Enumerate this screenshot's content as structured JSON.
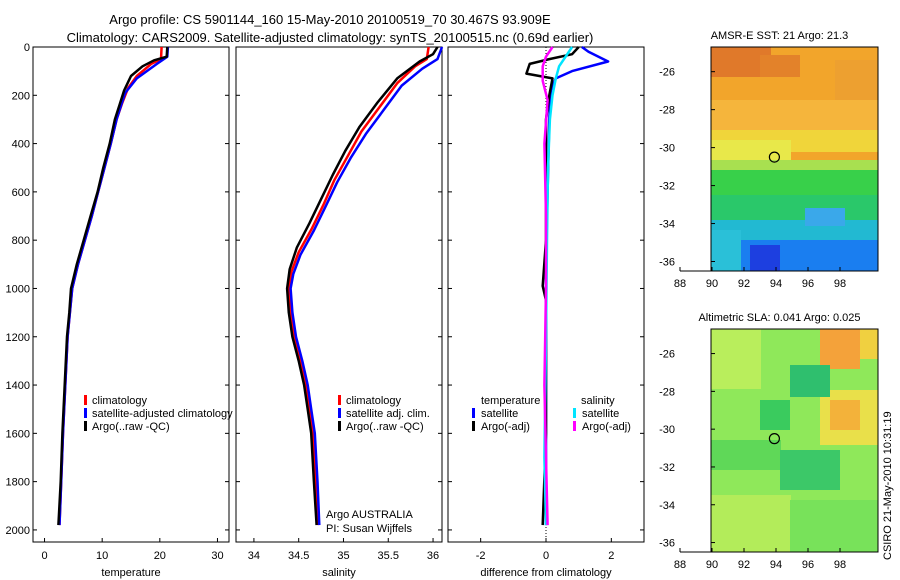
{
  "header": {
    "title_line1": "Argo profile: CS 5901144_160 15-May-2010 20100519_70 30.467S 93.909E",
    "title_line2": "Climatology: CARS2009. Satellite-adjusted climatology: synTS_20100515.nc (0.69d earlier)"
  },
  "credit": "CSIRO 21-May-2010 10:31:19",
  "colors": {
    "climatology": "#ff0000",
    "satellite": "#0000ff",
    "argo": "#000000",
    "cyan": "#00e5ff",
    "magenta": "#ff00ff"
  },
  "chart_data": [
    {
      "type": "line",
      "xlabel": "temperature",
      "xlim": [
        -2,
        32
      ],
      "ylim": [
        2050,
        0
      ],
      "xticks": [
        "0",
        "10",
        "20",
        "30"
      ],
      "yticks": [
        "0",
        "200",
        "400",
        "600",
        "800",
        "1000",
        "1200",
        "1400",
        "1600",
        "1800",
        "2000"
      ],
      "legend": [
        "climatology",
        "satellite-adjusted climatology",
        "Argo(..raw -QC)"
      ],
      "series": [
        {
          "name": "climatology",
          "color": "#ff0000",
          "points": [
            [
              20.3,
              0
            ],
            [
              20.2,
              50
            ],
            [
              18.5,
              70
            ],
            [
              16.0,
              120
            ],
            [
              14.5,
              170
            ],
            [
              13.5,
              230
            ],
            [
              12.5,
              300
            ],
            [
              11.5,
              400
            ],
            [
              10.4,
              500
            ],
            [
              9.3,
              600
            ],
            [
              8.2,
              700
            ],
            [
              7.0,
              800
            ],
            [
              5.8,
              900
            ],
            [
              4.8,
              1000
            ],
            [
              4.4,
              1100
            ],
            [
              4.0,
              1200
            ],
            [
              3.6,
              1400
            ],
            [
              3.2,
              1600
            ],
            [
              2.9,
              1800
            ],
            [
              2.6,
              1980
            ]
          ]
        },
        {
          "name": "satellite-adjusted climatology",
          "color": "#0000ff",
          "points": [
            [
              21.4,
              0
            ],
            [
              21.3,
              40
            ],
            [
              19.5,
              70
            ],
            [
              16.0,
              130
            ],
            [
              14.0,
              190
            ],
            [
              13.3,
              240
            ],
            [
              12.5,
              300
            ],
            [
              11.5,
              400
            ],
            [
              10.4,
              500
            ],
            [
              9.3,
              600
            ],
            [
              8.2,
              700
            ],
            [
              7.0,
              800
            ],
            [
              5.8,
              900
            ],
            [
              4.8,
              1000
            ],
            [
              4.4,
              1100
            ],
            [
              4.0,
              1200
            ],
            [
              3.6,
              1400
            ],
            [
              3.2,
              1600
            ],
            [
              2.9,
              1800
            ],
            [
              2.6,
              1980
            ]
          ]
        },
        {
          "name": "Argo(..raw -QC)",
          "color": "#000000",
          "points": [
            [
              21.3,
              0
            ],
            [
              21.2,
              40
            ],
            [
              19.0,
              55
            ],
            [
              17.0,
              80
            ],
            [
              15.0,
              120
            ],
            [
              13.8,
              180
            ],
            [
              13.0,
              240
            ],
            [
              12.2,
              300
            ],
            [
              11.3,
              400
            ],
            [
              10.2,
              500
            ],
            [
              9.2,
              600
            ],
            [
              8.0,
              700
            ],
            [
              6.8,
              800
            ],
            [
              5.6,
              900
            ],
            [
              4.6,
              1000
            ],
            [
              4.3,
              1100
            ],
            [
              3.9,
              1200
            ],
            [
              3.5,
              1400
            ],
            [
              3.1,
              1600
            ],
            [
              2.8,
              1800
            ],
            [
              2.4,
              1980
            ]
          ]
        }
      ]
    },
    {
      "type": "line",
      "xlabel": "salinity",
      "xlim": [
        33.8,
        36.1
      ],
      "ylim": [
        2050,
        0
      ],
      "xticks": [
        "34",
        "34.5",
        "35",
        "35.5",
        "36"
      ],
      "legend": [
        "climatology",
        "satellite adj. clim.",
        "Argo(..raw -QC)"
      ],
      "annotation": [
        "Argo AUSTRALIA",
        "PI: Susan Wijffels"
      ],
      "series": [
        {
          "name": "climatology",
          "color": "#ff0000",
          "points": [
            [
              35.95,
              0
            ],
            [
              35.93,
              50
            ],
            [
              35.8,
              80
            ],
            [
              35.6,
              150
            ],
            [
              35.4,
              250
            ],
            [
              35.2,
              350
            ],
            [
              35.05,
              450
            ],
            [
              34.9,
              550
            ],
            [
              34.78,
              650
            ],
            [
              34.65,
              750
            ],
            [
              34.5,
              850
            ],
            [
              34.42,
              930
            ],
            [
              34.39,
              1000
            ],
            [
              34.41,
              1100
            ],
            [
              34.45,
              1200
            ],
            [
              34.52,
              1300
            ],
            [
              34.58,
              1400
            ],
            [
              34.62,
              1500
            ],
            [
              34.66,
              1600
            ],
            [
              34.69,
              1800
            ],
            [
              34.72,
              1980
            ]
          ]
        },
        {
          "name": "satellite adj. clim.",
          "color": "#0000ff",
          "points": [
            [
              36.1,
              0
            ],
            [
              36.05,
              50
            ],
            [
              35.88,
              90
            ],
            [
              35.65,
              160
            ],
            [
              35.45,
              260
            ],
            [
              35.25,
              360
            ],
            [
              35.08,
              460
            ],
            [
              34.93,
              560
            ],
            [
              34.8,
              660
            ],
            [
              34.67,
              760
            ],
            [
              34.52,
              860
            ],
            [
              34.44,
              940
            ],
            [
              34.41,
              1000
            ],
            [
              34.43,
              1100
            ],
            [
              34.47,
              1200
            ],
            [
              34.54,
              1300
            ],
            [
              34.6,
              1400
            ],
            [
              34.64,
              1500
            ],
            [
              34.68,
              1600
            ],
            [
              34.71,
              1800
            ],
            [
              34.73,
              1980
            ]
          ]
        },
        {
          "name": "Argo(..raw -QC)",
          "color": "#000000",
          "points": [
            [
              36.05,
              0
            ],
            [
              36.0,
              30
            ],
            [
              35.85,
              60
            ],
            [
              35.6,
              130
            ],
            [
              35.38,
              230
            ],
            [
              35.18,
              330
            ],
            [
              35.02,
              430
            ],
            [
              34.88,
              530
            ],
            [
              34.75,
              630
            ],
            [
              34.62,
              730
            ],
            [
              34.48,
              830
            ],
            [
              34.4,
              920
            ],
            [
              34.37,
              1000
            ],
            [
              34.39,
              1100
            ],
            [
              34.43,
              1200
            ],
            [
              34.5,
              1300
            ],
            [
              34.56,
              1400
            ],
            [
              34.6,
              1500
            ],
            [
              34.64,
              1600
            ],
            [
              34.67,
              1800
            ],
            [
              34.7,
              1980
            ]
          ]
        }
      ]
    },
    {
      "type": "line",
      "xlabel": "difference from climatology",
      "xlim": [
        -3,
        3
      ],
      "ylim": [
        2050,
        0
      ],
      "xticks": [
        "-2",
        "0",
        "2"
      ],
      "legend_groups": [
        {
          "heading": "temperature",
          "items": [
            "satellite",
            "Argo(-adj)"
          ]
        },
        {
          "heading": "salinity",
          "items": [
            "satellite",
            "Argo(-adj)"
          ]
        }
      ],
      "series": [
        {
          "name": "temperature satellite",
          "color": "#0000ff",
          "points": [
            [
              1.1,
              0
            ],
            [
              1.3,
              20
            ],
            [
              1.9,
              60
            ],
            [
              0.8,
              100
            ],
            [
              0.3,
              130
            ],
            [
              0.15,
              180
            ],
            [
              0.1,
              300
            ],
            [
              0.05,
              600
            ],
            [
              0.0,
              900
            ],
            [
              0.0,
              1200
            ],
            [
              0.0,
              1600
            ],
            [
              0.0,
              1980
            ]
          ]
        },
        {
          "name": "temperature Argo(-adj)",
          "color": "#000000",
          "points": [
            [
              1.0,
              0
            ],
            [
              0.8,
              30
            ],
            [
              0.1,
              50
            ],
            [
              -0.5,
              70
            ],
            [
              -0.6,
              110
            ],
            [
              0.2,
              130
            ],
            [
              0.1,
              200
            ],
            [
              0.0,
              300
            ],
            [
              0.0,
              500
            ],
            [
              0.0,
              800
            ],
            [
              -0.1,
              990
            ],
            [
              0.0,
              1050
            ],
            [
              0.0,
              1300
            ],
            [
              0.0,
              1600
            ],
            [
              -0.1,
              1980
            ]
          ]
        },
        {
          "name": "salinity satellite",
          "color": "#00e5ff",
          "points": [
            [
              0.8,
              0
            ],
            [
              0.6,
              40
            ],
            [
              0.4,
              80
            ],
            [
              0.3,
              130
            ],
            [
              0.2,
              200
            ],
            [
              0.12,
              300
            ],
            [
              0.06,
              500
            ],
            [
              0.03,
              800
            ],
            [
              0.0,
              1200
            ],
            [
              -0.05,
              1700
            ],
            [
              0.0,
              1980
            ]
          ]
        },
        {
          "name": "salinity Argo(-adj)",
          "color": "#ff00ff",
          "points": [
            [
              0.2,
              0
            ],
            [
              0.0,
              40
            ],
            [
              -0.1,
              80
            ],
            [
              -0.1,
              140
            ],
            [
              0.05,
              220
            ],
            [
              -0.05,
              400
            ],
            [
              0.0,
              700
            ],
            [
              0.0,
              1000
            ],
            [
              -0.05,
              1400
            ],
            [
              0.0,
              1700
            ],
            [
              0.05,
              1980
            ]
          ]
        }
      ]
    },
    {
      "type": "heatmap",
      "title": "AMSR-E SST: 21 Argo: 21.3",
      "xlim": [
        88,
        100
      ],
      "ylim": [
        -36.5,
        -24.7
      ],
      "xticks": [
        "88",
        "90",
        "92",
        "94",
        "96",
        "98"
      ],
      "yticks": [
        "-26",
        "-28",
        "-30",
        "-32",
        "-34",
        "-36"
      ],
      "marker": {
        "lon": 93.9,
        "lat": -30.5
      }
    },
    {
      "type": "heatmap",
      "title": "Altimetric SLA: 0.041 Argo: 0.025",
      "xlim": [
        88,
        100
      ],
      "ylim": [
        -36.5,
        -24.7
      ],
      "xticks": [
        "88",
        "90",
        "92",
        "94",
        "96",
        "98"
      ],
      "yticks": [
        "-26",
        "-28",
        "-30",
        "-32",
        "-34",
        "-36"
      ],
      "marker": {
        "lon": 93.9,
        "lat": -30.5
      }
    }
  ]
}
